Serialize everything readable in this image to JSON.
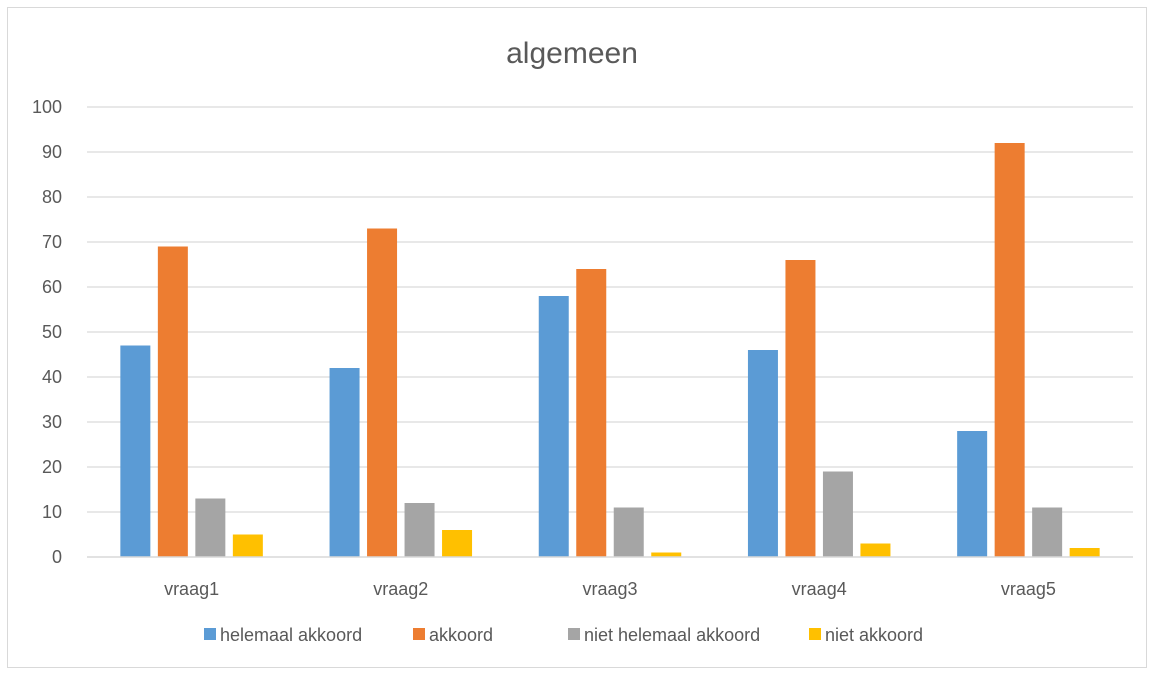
{
  "chart_data": {
    "type": "bar",
    "title": "algemeen",
    "xlabel": "",
    "ylabel": "",
    "categories": [
      "vraag1",
      "vraag2",
      "vraag3",
      "vraag4",
      "vraag5"
    ],
    "series": [
      {
        "name": "helemaal akkoord",
        "color": "#5b9bd5",
        "values": [
          47,
          42,
          58,
          46,
          28
        ]
      },
      {
        "name": "akkoord",
        "color": "#ed7d31",
        "values": [
          69,
          73,
          64,
          66,
          92
        ]
      },
      {
        "name": "niet helemaal akkoord",
        "color": "#a5a5a5",
        "values": [
          13,
          12,
          11,
          19,
          11
        ]
      },
      {
        "name": "niet akkoord",
        "color": "#ffc000",
        "values": [
          5,
          6,
          1,
          3,
          2
        ]
      }
    ],
    "ylim": [
      0,
      100
    ],
    "yticks": [
      "0",
      "10",
      "20",
      "30",
      "40",
      "50",
      "60",
      "70",
      "80",
      "90",
      "100"
    ],
    "grid": true,
    "legend_position": "bottom"
  }
}
